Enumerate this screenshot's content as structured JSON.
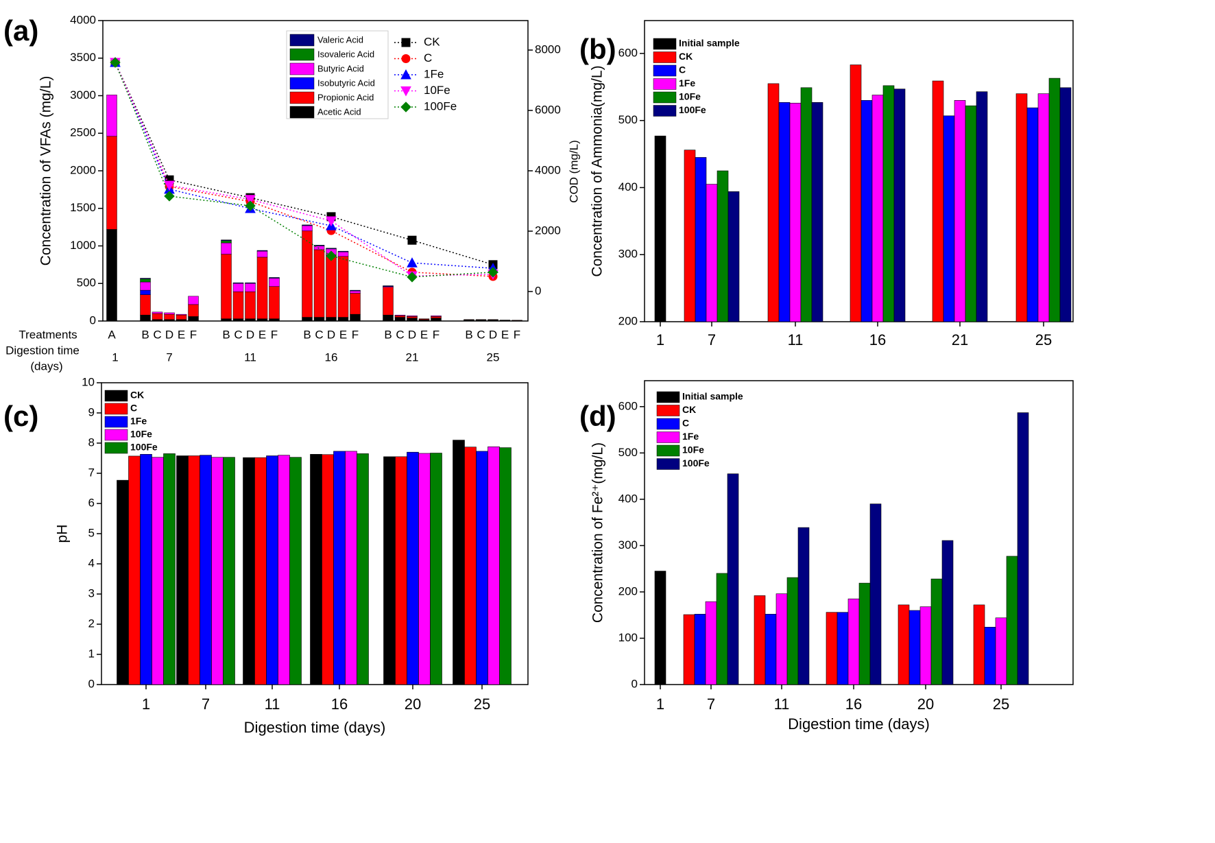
{
  "chart_data": [
    {
      "type": "stacked_bar_line",
      "panel_label": "(a)",
      "ylabel": "Concentration of VFAs (mg/L)",
      "y2label": "COD (mg/L)",
      "row_labels": [
        "Treatments",
        "Digestion time",
        "(days)"
      ],
      "categories": [
        "A",
        "B",
        "C",
        "D",
        "E",
        "F",
        "B",
        "C",
        "D",
        "E",
        "F",
        "B",
        "C",
        "D",
        "E",
        "F",
        "B",
        "C",
        "D",
        "E",
        "F",
        "B",
        "C",
        "D",
        "E",
        "F"
      ],
      "groups": [
        "1",
        "7",
        "11",
        "16",
        "21",
        "25"
      ],
      "ylim": [
        0,
        4000
      ],
      "yticks": [
        0,
        500,
        1000,
        1500,
        2000,
        2500,
        3000,
        3500,
        4000
      ],
      "y2lim": [
        -977,
        8977
      ],
      "y2ticks": [
        0,
        2000,
        4000,
        6000,
        8000
      ],
      "series": [
        {
          "name": "Acetic Acid",
          "color": "#000000",
          "values": [
            1220,
            80,
            20,
            20,
            20,
            60,
            30,
            30,
            30,
            30,
            30,
            50,
            50,
            50,
            50,
            90,
            80,
            50,
            40,
            20,
            40,
            15,
            15,
            15,
            10,
            8
          ]
        },
        {
          "name": "Propionic Acid",
          "color": "#ff0000",
          "values": [
            1240,
            270,
            80,
            70,
            60,
            160,
            860,
            360,
            360,
            820,
            430,
            1150,
            900,
            830,
            810,
            280,
            370,
            20,
            20,
            10,
            20,
            5,
            5,
            5,
            3,
            3
          ]
        },
        {
          "name": "Isobutyric Acid",
          "color": "#0000ff",
          "values": [
            0,
            60,
            0,
            0,
            0,
            0,
            0,
            0,
            0,
            0,
            0,
            0,
            0,
            0,
            0,
            0,
            0,
            0,
            0,
            0,
            0,
            0,
            0,
            0,
            0,
            0
          ]
        },
        {
          "name": "Butyric Acid",
          "color": "#ff00ff",
          "values": [
            550,
            110,
            20,
            20,
            10,
            110,
            150,
            110,
            110,
            80,
            110,
            70,
            50,
            80,
            60,
            30,
            10,
            10,
            10,
            0,
            10,
            0,
            0,
            0,
            0,
            0
          ]
        },
        {
          "name": "Isovaleric Acid",
          "color": "#008000",
          "values": [
            0,
            40,
            0,
            0,
            0,
            0,
            30,
            0,
            0,
            0,
            0,
            0,
            0,
            0,
            0,
            0,
            0,
            0,
            0,
            0,
            0,
            0,
            0,
            0,
            0,
            0
          ]
        },
        {
          "name": "Valeric Acid",
          "color": "#000080",
          "values": [
            0,
            10,
            0,
            0,
            0,
            0,
            10,
            10,
            10,
            10,
            10,
            10,
            10,
            10,
            10,
            10,
            10,
            0,
            0,
            0,
            0,
            0,
            0,
            0,
            0,
            0
          ]
        }
      ],
      "line_series": [
        {
          "name": "CK",
          "color": "#000000",
          "marker": "square",
          "axis": "y2",
          "values": [
            7590,
            3700,
            3110,
            2480,
            1700,
            890
          ]
        },
        {
          "name": "C",
          "color": "#ff0000",
          "marker": "circle",
          "axis": "y2",
          "values": [
            7590,
            3480,
            2980,
            2020,
            640,
            500
          ]
        },
        {
          "name": "1Fe",
          "color": "#0000ff",
          "marker": "triangle-up",
          "axis": "y2",
          "values": [
            7590,
            3390,
            2750,
            2180,
            950,
            770
          ]
        },
        {
          "name": "10Fe",
          "color": "#ff00ff",
          "marker": "triangle-down",
          "axis": "y2",
          "values": [
            7590,
            3520,
            3050,
            2340,
            520,
            570
          ]
        },
        {
          "name": "100Fe",
          "color": "#008000",
          "marker": "diamond",
          "axis": "y2",
          "values": [
            7590,
            3160,
            2840,
            1180,
            480,
            640
          ]
        }
      ]
    },
    {
      "type": "bar",
      "panel_label": "(b)",
      "ylabel": "Concentration of Ammonia(mg/L)",
      "categories": [
        "1",
        "7",
        "11",
        "16",
        "21",
        "25"
      ],
      "ylim": [
        200,
        649
      ],
      "yticks": [
        200,
        300,
        400,
        500,
        600
      ],
      "series": [
        {
          "name": "Initial sample",
          "color": "#000000",
          "values": [
            477,
            null,
            null,
            null,
            null,
            null
          ]
        },
        {
          "name": "CK",
          "color": "#ff0000",
          "values": [
            null,
            456,
            555,
            583,
            559,
            540
          ]
        },
        {
          "name": "C",
          "color": "#0000ff",
          "values": [
            null,
            445,
            527,
            530,
            507,
            519
          ]
        },
        {
          "name": "1Fe",
          "color": "#ff00ff",
          "values": [
            null,
            405,
            526,
            538,
            530,
            540
          ]
        },
        {
          "name": "10Fe",
          "color": "#008000",
          "values": [
            null,
            425,
            549,
            552,
            522,
            563
          ]
        },
        {
          "name": "100Fe",
          "color": "#000080",
          "values": [
            null,
            394,
            527,
            547,
            543,
            549
          ]
        }
      ]
    },
    {
      "type": "bar",
      "panel_label": "(c)",
      "ylabel": "pH",
      "xlabel": "Digestion time (days)",
      "categories": [
        "1",
        "7",
        "11",
        "16",
        "20",
        "25"
      ],
      "ylim": [
        0,
        10
      ],
      "yticks": [
        0,
        1,
        2,
        3,
        4,
        5,
        6,
        7,
        8,
        9,
        10
      ],
      "series": [
        {
          "name": "CK",
          "color": "#000000",
          "values": [
            6.77,
            7.58,
            7.52,
            7.63,
            7.55,
            8.1
          ]
        },
        {
          "name": "C",
          "color": "#ff0000",
          "values": [
            7.57,
            7.58,
            7.52,
            7.62,
            7.55,
            7.87
          ]
        },
        {
          "name": "1Fe",
          "color": "#0000ff",
          "values": [
            7.63,
            7.6,
            7.58,
            7.73,
            7.7,
            7.73
          ]
        },
        {
          "name": "10Fe",
          "color": "#ff00ff",
          "values": [
            7.53,
            7.53,
            7.6,
            7.73,
            7.66,
            7.88
          ]
        },
        {
          "name": "100Fe",
          "color": "#008000",
          "values": [
            7.65,
            7.53,
            7.53,
            7.65,
            7.67,
            7.85
          ]
        }
      ]
    },
    {
      "type": "bar",
      "panel_label": "(d)",
      "ylabel": "Concentration of Fe²⁺(mg/L)",
      "xlabel": "Digestion time (days)",
      "categories": [
        "1",
        "7",
        "11",
        "16",
        "20",
        "25"
      ],
      "ylim": [
        0,
        656
      ],
      "yticks": [
        0,
        100,
        200,
        300,
        400,
        500,
        600
      ],
      "series": [
        {
          "name": "Initial sample",
          "color": "#000000",
          "values": [
            245,
            null,
            null,
            null,
            null,
            null
          ]
        },
        {
          "name": "CK",
          "color": "#ff0000",
          "values": [
            null,
            151,
            192,
            156,
            172,
            172
          ]
        },
        {
          "name": "C",
          "color": "#0000ff",
          "values": [
            null,
            152,
            152,
            156,
            160,
            124
          ]
        },
        {
          "name": "1Fe",
          "color": "#ff00ff",
          "values": [
            null,
            179,
            196,
            185,
            168,
            144
          ]
        },
        {
          "name": "10Fe",
          "color": "#008000",
          "values": [
            null,
            240,
            231,
            219,
            228,
            277
          ]
        },
        {
          "name": "100Fe",
          "color": "#000080",
          "values": [
            null,
            455,
            339,
            390,
            311,
            587
          ]
        }
      ]
    }
  ]
}
